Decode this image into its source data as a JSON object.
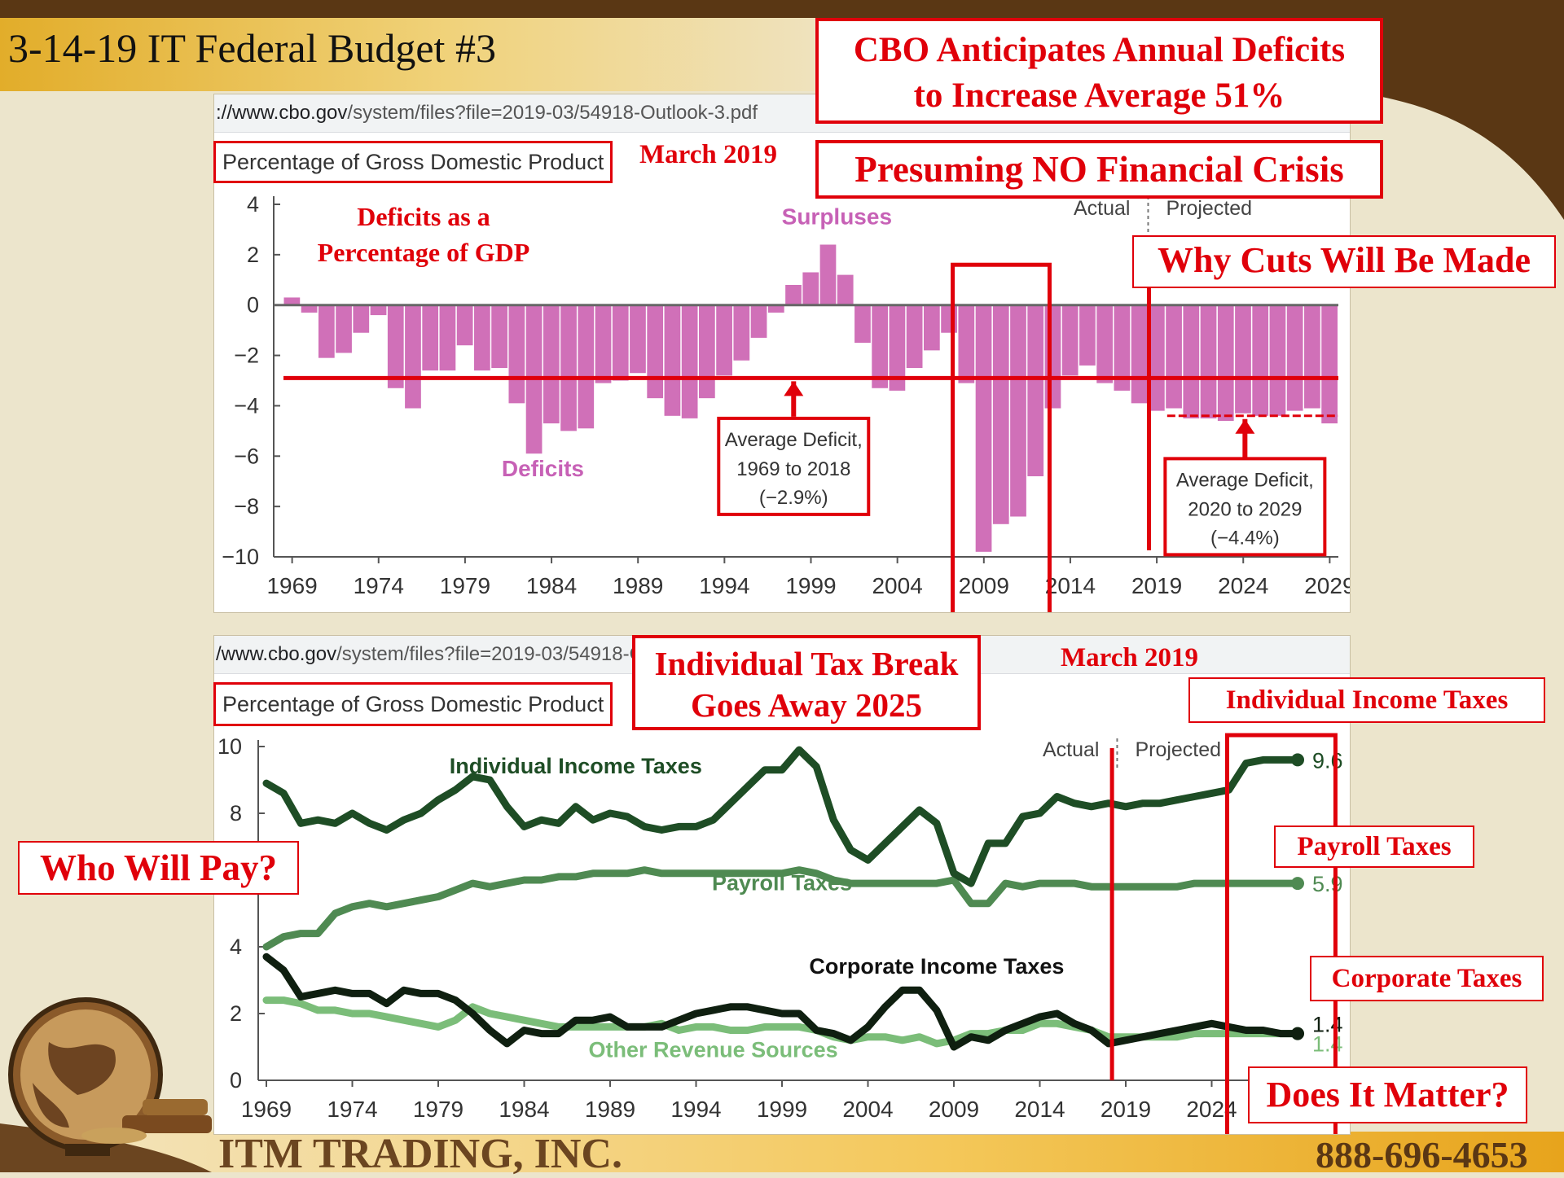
{
  "slide": {
    "title": "3-14-19 IT Federal Budget #3",
    "headline_line1": "CBO Anticipates Annual Deficits",
    "headline_line2": "to Increase Average 51%",
    "subheadline": "Presuming NO Financial Crisis",
    "why_cuts": "Why Cuts Will Be Made",
    "who_will_pay": "Who Will Pay?",
    "tax_break_line1": "Individual Tax Break",
    "tax_break_line2": "Goes Away 2025",
    "does_it_matter": "Does It Matter?",
    "label_individual": "Individual Income Taxes",
    "label_payroll": "Payroll Taxes",
    "label_corporate": "Corporate Taxes",
    "company": "ITM TRADING, INC.",
    "phone": "888-696-4653",
    "colors": {
      "accent_red": "#e0000a",
      "deficit_bar": "#d070b8",
      "header_gold": "#e2ad2a",
      "dark_brown": "#5a3714"
    }
  },
  "top_panel": {
    "url_host": "://www.cbo.gov",
    "url_path": "/system/files?file=2019-03/54918-Outlook-3.pdf",
    "unit_label": "Percentage of Gross Domestic Product",
    "date_label": "March 2019",
    "chart_heading_line1": "Deficits as a",
    "chart_heading_line2": "Percentage of GDP"
  },
  "bottom_panel": {
    "url_host": "/www.cbo.gov",
    "url_path": "/system/files?file=2019-03/54918-Ou",
    "unit_label": "Percentage of Gross Domestic Product",
    "date_label": "March 2019"
  },
  "chart_data": [
    {
      "type": "bar",
      "title": "Deficits as a Percentage of GDP",
      "ylabel": "Percentage of Gross Domestic Product",
      "ylim": [
        -10,
        4
      ],
      "yticks": [
        "4",
        "2",
        "0",
        "−2",
        "−4",
        "−6",
        "−8",
        "−10"
      ],
      "xticks": [
        "1969",
        "1974",
        "1979",
        "1984",
        "1989",
        "1994",
        "1999",
        "2004",
        "2009",
        "2014",
        "2019",
        "2024",
        "2029"
      ],
      "x": [
        1969,
        1970,
        1971,
        1972,
        1973,
        1974,
        1975,
        1976,
        1977,
        1978,
        1979,
        1980,
        1981,
        1982,
        1983,
        1984,
        1985,
        1986,
        1987,
        1988,
        1989,
        1990,
        1991,
        1992,
        1993,
        1994,
        1995,
        1996,
        1997,
        1998,
        1999,
        2000,
        2001,
        2002,
        2003,
        2004,
        2005,
        2006,
        2007,
        2008,
        2009,
        2010,
        2011,
        2012,
        2013,
        2014,
        2015,
        2016,
        2017,
        2018,
        2019,
        2020,
        2021,
        2022,
        2023,
        2024,
        2025,
        2026,
        2027,
        2028,
        2029
      ],
      "values": [
        0.3,
        -0.3,
        -2.1,
        -1.9,
        -1.1,
        -0.4,
        -3.3,
        -4.1,
        -2.6,
        -2.6,
        -1.6,
        -2.6,
        -2.5,
        -3.9,
        -5.9,
        -4.7,
        -5.0,
        -4.9,
        -3.1,
        -3.0,
        -2.7,
        -3.7,
        -4.4,
        -4.5,
        -3.7,
        -2.8,
        -2.2,
        -1.3,
        -0.3,
        0.8,
        1.3,
        2.4,
        1.2,
        -1.5,
        -3.3,
        -3.4,
        -2.5,
        -1.8,
        -1.1,
        -3.1,
        -9.8,
        -8.7,
        -8.4,
        -6.8,
        -4.1,
        -2.8,
        -2.4,
        -3.1,
        -3.4,
        -3.9,
        -4.2,
        -4.1,
        -4.5,
        -4.5,
        -4.6,
        -4.3,
        -4.4,
        -4.4,
        -4.2,
        -4.1,
        -4.7
      ],
      "annotations": {
        "surpluses": "Surpluses",
        "deficits": "Deficits",
        "actual": "Actual",
        "projected": "Projected",
        "avg1_line1": "Average Deficit,",
        "avg1_line2": "1969 to 2018",
        "avg1_line3": "(−2.9%)",
        "avg2_line1": "Average Deficit,",
        "avg2_line2": "2020 to 2029",
        "avg2_line3": "(−4.4%)"
      },
      "average_1969_2018": -2.9,
      "average_2020_2029": -4.4
    },
    {
      "type": "line",
      "ylabel": "Percentage of Gross Domestic Product",
      "ylim": [
        0,
        10
      ],
      "yticks": [
        "10",
        "8",
        "4",
        "2",
        "0"
      ],
      "xticks": [
        "1969",
        "1974",
        "1979",
        "1984",
        "1989",
        "1994",
        "1999",
        "2004",
        "2009",
        "2014",
        "2019",
        "2024"
      ],
      "x": [
        1969,
        1970,
        1971,
        1972,
        1973,
        1974,
        1975,
        1976,
        1977,
        1978,
        1979,
        1980,
        1981,
        1982,
        1983,
        1984,
        1985,
        1986,
        1987,
        1988,
        1989,
        1990,
        1991,
        1992,
        1993,
        1994,
        1995,
        1996,
        1997,
        1998,
        1999,
        2000,
        2001,
        2002,
        2003,
        2004,
        2005,
        2006,
        2007,
        2008,
        2009,
        2010,
        2011,
        2012,
        2013,
        2014,
        2015,
        2016,
        2017,
        2018,
        2019,
        2020,
        2021,
        2022,
        2023,
        2024,
        2025,
        2026,
        2027,
        2028,
        2029
      ],
      "series": [
        {
          "name": "Individual Income Taxes",
          "color": "#1e4d25",
          "end_label": "9.6",
          "values": [
            8.9,
            8.6,
            7.7,
            7.8,
            7.7,
            8.0,
            7.7,
            7.5,
            7.8,
            8.0,
            8.4,
            8.7,
            9.1,
            9.0,
            8.2,
            7.6,
            7.8,
            7.7,
            8.2,
            7.8,
            8.0,
            7.9,
            7.6,
            7.5,
            7.6,
            7.6,
            7.8,
            8.3,
            8.8,
            9.3,
            9.3,
            9.9,
            9.4,
            7.8,
            6.9,
            6.6,
            7.1,
            7.6,
            8.1,
            7.7,
            6.2,
            5.9,
            7.1,
            7.1,
            7.9,
            8.0,
            8.5,
            8.3,
            8.2,
            8.3,
            8.2,
            8.3,
            8.3,
            8.4,
            8.5,
            8.6,
            8.7,
            9.5,
            9.6,
            9.6,
            9.6
          ]
        },
        {
          "name": "Payroll Taxes",
          "color": "#4f8a52",
          "end_label": "5.9",
          "values": [
            4.0,
            4.3,
            4.4,
            4.4,
            5.0,
            5.2,
            5.3,
            5.2,
            5.3,
            5.4,
            5.5,
            5.7,
            5.9,
            5.8,
            5.9,
            6.0,
            6.0,
            6.1,
            6.1,
            6.2,
            6.2,
            6.2,
            6.3,
            6.2,
            6.2,
            6.2,
            6.2,
            6.2,
            6.2,
            6.2,
            6.2,
            6.3,
            6.2,
            6.0,
            5.9,
            5.9,
            5.9,
            5.9,
            5.9,
            5.9,
            6.0,
            5.3,
            5.3,
            5.9,
            5.8,
            5.9,
            5.9,
            5.9,
            5.8,
            5.8,
            5.8,
            5.8,
            5.8,
            5.8,
            5.9,
            5.9,
            5.9,
            5.9,
            5.9,
            5.9,
            5.9
          ]
        },
        {
          "name": "Corporate Income Taxes",
          "color": "#0f1f10",
          "end_label": "1.4",
          "values": [
            3.7,
            3.3,
            2.5,
            2.6,
            2.7,
            2.6,
            2.6,
            2.3,
            2.7,
            2.6,
            2.6,
            2.4,
            2.0,
            1.5,
            1.1,
            1.5,
            1.4,
            1.4,
            1.8,
            1.8,
            1.9,
            1.6,
            1.6,
            1.6,
            1.8,
            2.0,
            2.1,
            2.2,
            2.2,
            2.1,
            2.0,
            2.0,
            1.5,
            1.4,
            1.2,
            1.6,
            2.2,
            2.7,
            2.7,
            2.1,
            1.0,
            1.3,
            1.2,
            1.5,
            1.7,
            1.9,
            2.0,
            1.7,
            1.5,
            1.1,
            1.2,
            1.3,
            1.4,
            1.5,
            1.6,
            1.7,
            1.6,
            1.5,
            1.5,
            1.4,
            1.4
          ]
        },
        {
          "name": "Other Revenue Sources",
          "color": "#7bbd79",
          "end_label": "1.4",
          "values": [
            2.4,
            2.4,
            2.3,
            2.1,
            2.1,
            2.0,
            2.0,
            1.9,
            1.8,
            1.7,
            1.6,
            1.8,
            2.2,
            2.0,
            1.9,
            1.8,
            1.7,
            1.6,
            1.6,
            1.6,
            1.6,
            1.6,
            1.6,
            1.7,
            1.5,
            1.6,
            1.6,
            1.5,
            1.5,
            1.6,
            1.6,
            1.6,
            1.5,
            1.3,
            1.2,
            1.3,
            1.3,
            1.2,
            1.3,
            1.1,
            1.2,
            1.4,
            1.4,
            1.5,
            1.5,
            1.7,
            1.7,
            1.6,
            1.5,
            1.3,
            1.3,
            1.3,
            1.3,
            1.3,
            1.4,
            1.4,
            1.4,
            1.4,
            1.4,
            1.4,
            1.4
          ]
        }
      ],
      "annotations": {
        "actual": "Actual",
        "projected": "Projected"
      }
    }
  ]
}
